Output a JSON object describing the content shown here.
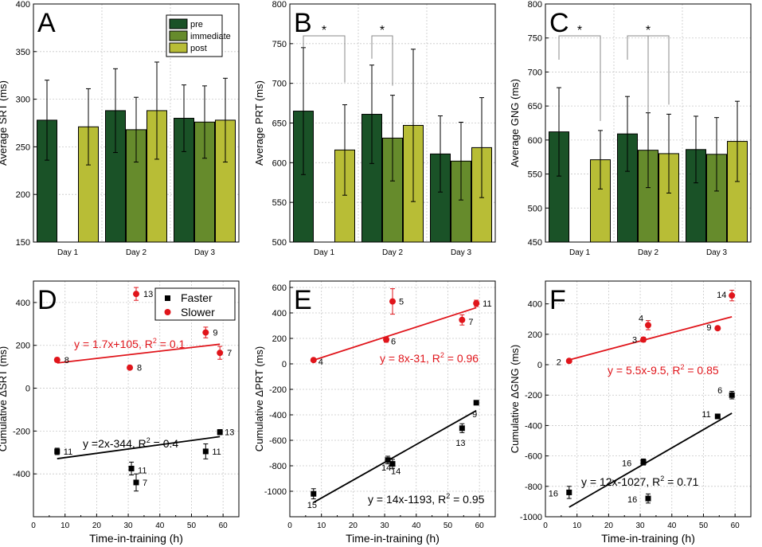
{
  "figure": {
    "colors": {
      "pre": "#1a5227",
      "immediate": "#668b2c",
      "post": "#b8bd36",
      "faster": "#000000",
      "slower": "#e0151b",
      "grid": "#c8c8c8"
    }
  },
  "chart_data": [
    {
      "panel": "A",
      "type": "bar",
      "ylabel": "Average SRT (ms)",
      "ylim": [
        150,
        400
      ],
      "yticks": [
        "150",
        "200",
        "250",
        "300",
        "350",
        "400"
      ],
      "categories": [
        "Day 1",
        "Day 2",
        "Day 3"
      ],
      "legend": [
        "pre",
        "immediate",
        "post"
      ],
      "series": [
        {
          "name": "pre",
          "values": [
            278,
            288,
            280
          ],
          "errors": [
            42,
            44,
            35
          ]
        },
        {
          "name": "immediate",
          "values": [
            null,
            268,
            276
          ],
          "errors": [
            null,
            34,
            38
          ]
        },
        {
          "name": "post",
          "values": [
            271,
            288,
            278
          ],
          "errors": [
            40,
            51,
            44
          ]
        }
      ],
      "sig": []
    },
    {
      "panel": "B",
      "type": "bar",
      "ylabel": "Average PRT (ms)",
      "ylim": [
        500,
        800
      ],
      "yticks": [
        "500",
        "550",
        "600",
        "650",
        "700",
        "750",
        "800"
      ],
      "categories": [
        "Day 1",
        "Day 2",
        "Day 3"
      ],
      "series": [
        {
          "name": "pre",
          "values": [
            665,
            661,
            611
          ],
          "errors": [
            80,
            62,
            48
          ]
        },
        {
          "name": "immediate",
          "values": [
            null,
            631,
            602
          ],
          "errors": [
            null,
            54,
            49
          ]
        },
        {
          "name": "post",
          "values": [
            616,
            647,
            619
          ],
          "errors": [
            57,
            96,
            63
          ]
        }
      ],
      "sig": [
        {
          "label": "*",
          "from": [
            0,
            0
          ],
          "to": [
            0,
            2
          ]
        },
        {
          "label": "*",
          "from": [
            1,
            0
          ],
          "to": [
            1,
            1
          ]
        }
      ]
    },
    {
      "panel": "C",
      "type": "bar",
      "ylabel": "Average GNG (ms)",
      "ylim": [
        450,
        800
      ],
      "yticks": [
        "450",
        "500",
        "550",
        "600",
        "650",
        "700",
        "750",
        "800"
      ],
      "categories": [
        "Day 1",
        "Day 2",
        "Day 3"
      ],
      "series": [
        {
          "name": "pre",
          "values": [
            612,
            609,
            586
          ],
          "errors": [
            65,
            55,
            49
          ]
        },
        {
          "name": "immediate",
          "values": [
            null,
            585,
            579
          ],
          "errors": [
            null,
            55,
            54
          ]
        },
        {
          "name": "post",
          "values": [
            571,
            580,
            598
          ],
          "errors": [
            43,
            58,
            59
          ]
        }
      ],
      "sig": [
        {
          "label": "*",
          "from": [
            0,
            0
          ],
          "to": [
            0,
            2
          ]
        },
        {
          "label": "*",
          "from": [
            1,
            0
          ],
          "to": [
            1,
            2
          ]
        }
      ]
    },
    {
      "panel": "D",
      "type": "scatter",
      "ylabel": "Cumulative ΔSRT (ms)",
      "xlabel": "Time-in-training (h)",
      "xlim": [
        0,
        65
      ],
      "ylim": [
        -600,
        500
      ],
      "xticks": [
        "0",
        "10",
        "20",
        "30",
        "40",
        "50",
        "60"
      ],
      "yticks": [
        "-400",
        "-200",
        "0",
        "200",
        "400"
      ],
      "legend": [
        "Faster",
        "Slower"
      ],
      "series": [
        {
          "name": "Faster",
          "points": [
            {
              "x": 7.5,
              "y": -295,
              "err": 15,
              "label": "11"
            },
            {
              "x": 31,
              "y": -375,
              "err": 30,
              "label": "11"
            },
            {
              "x": 32.5,
              "y": -440,
              "err": 40,
              "label": "7"
            },
            {
              "x": 54.5,
              "y": -295,
              "err": 35,
              "label": "11"
            },
            {
              "x": 59,
              "y": -205,
              "err": 12,
              "label": "13"
            }
          ],
          "fit": {
            "slope": 2,
            "intercept": -344,
            "range": [
              7.5,
              59
            ],
            "text": "y =2x-344, R",
            "r2": " = 0.4"
          }
        },
        {
          "name": "Slower",
          "points": [
            {
              "x": 7.5,
              "y": 132,
              "err": 10,
              "label": "8"
            },
            {
              "x": 30.5,
              "y": 96,
              "err": 8,
              "label": "8"
            },
            {
              "x": 32.5,
              "y": 440,
              "err": 30,
              "label": "13"
            },
            {
              "x": 54.5,
              "y": 260,
              "err": 25,
              "label": "9"
            },
            {
              "x": 59,
              "y": 165,
              "err": 30,
              "label": "7"
            }
          ],
          "fit": {
            "slope": 1.7,
            "intercept": 105,
            "range": [
              7.5,
              59
            ],
            "text": "y = 1.7x+105, R",
            "r2": " = 0.1"
          }
        }
      ]
    },
    {
      "panel": "E",
      "type": "scatter",
      "ylabel": "Cumulative ΔPRT (ms)",
      "xlabel": "Time-in-training (h)",
      "xlim": [
        0,
        65
      ],
      "ylim": [
        -1200,
        650
      ],
      "xticks": [
        "0",
        "10",
        "20",
        "30",
        "40",
        "50",
        "60"
      ],
      "yticks": [
        "-1000",
        "-800",
        "-600",
        "-400",
        "-200",
        "0",
        "200",
        "400",
        "600"
      ],
      "series": [
        {
          "name": "Faster",
          "points": [
            {
              "x": 7.5,
              "y": -1020,
              "err": 40,
              "label": "15"
            },
            {
              "x": 31,
              "y": -755,
              "err": 30,
              "label": "14"
            },
            {
              "x": 32.5,
              "y": -785,
              "err": 35,
              "label": "14"
            },
            {
              "x": 54.5,
              "y": -505,
              "err": 35,
              "label": "13"
            },
            {
              "x": 59,
              "y": -305,
              "err": 15,
              "label": "9"
            }
          ],
          "fit": {
            "slope": 14,
            "intercept": -1193,
            "range": [
              7.5,
              59
            ],
            "text": "y = 14x-1193, R",
            "r2": " = 0.95"
          }
        },
        {
          "name": "Slower",
          "points": [
            {
              "x": 7.5,
              "y": 30,
              "err": 10,
              "label": "4"
            },
            {
              "x": 30.5,
              "y": 190,
              "err": 20,
              "label": "6"
            },
            {
              "x": 32.5,
              "y": 490,
              "err": 100,
              "label": "5"
            },
            {
              "x": 54.5,
              "y": 345,
              "err": 40,
              "label": "7"
            },
            {
              "x": 59,
              "y": 475,
              "err": 25,
              "label": "11"
            }
          ],
          "fit": {
            "slope": 8,
            "intercept": -31,
            "range": [
              7.5,
              59
            ],
            "text": "y = 8x-31, R",
            "r2": " = 0.96"
          }
        }
      ]
    },
    {
      "panel": "F",
      "type": "scatter",
      "ylabel": "Cumulative ΔGNG (ms)",
      "xlabel": "Time-in-training (h)",
      "xlim": [
        0,
        65
      ],
      "ylim": [
        -1000,
        550
      ],
      "xticks": [
        "0",
        "10",
        "20",
        "30",
        "40",
        "50",
        "60"
      ],
      "yticks": [
        "-1000",
        "-800",
        "-600",
        "-400",
        "-200",
        "0",
        "200",
        "400"
      ],
      "series": [
        {
          "name": "Faster",
          "points": [
            {
              "x": 7.5,
              "y": -840,
              "err": 40,
              "label": "16"
            },
            {
              "x": 31,
              "y": -640,
              "err": 20,
              "label": "16"
            },
            {
              "x": 32.5,
              "y": -880,
              "err": 30,
              "label": "16"
            },
            {
              "x": 54.5,
              "y": -340,
              "err": 10,
              "label": "11"
            },
            {
              "x": 59,
              "y": -200,
              "err": 25,
              "label": "6"
            }
          ],
          "fit": {
            "slope": 12,
            "intercept": -1027,
            "range": [
              7.5,
              59
            ],
            "text": "y = 12x-1027, R",
            "r2": " = 0.71"
          }
        },
        {
          "name": "Slower",
          "points": [
            {
              "x": 7.5,
              "y": 25,
              "err": 10,
              "label": "2"
            },
            {
              "x": 31,
              "y": 165,
              "err": 15,
              "label": "3"
            },
            {
              "x": 32.5,
              "y": 260,
              "err": 30,
              "label": "4"
            },
            {
              "x": 54.5,
              "y": 240,
              "err": 10,
              "label": "9"
            },
            {
              "x": 59,
              "y": 455,
              "err": 35,
              "label": "14"
            }
          ],
          "fit": {
            "slope": 5.5,
            "intercept": -9.5,
            "range": [
              7.5,
              59
            ],
            "text": "y = 5.5x-9.5, R",
            "r2": " = 0.85"
          }
        }
      ]
    }
  ]
}
